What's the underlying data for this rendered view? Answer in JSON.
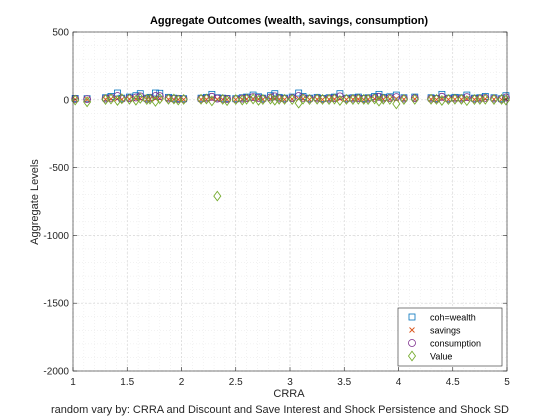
{
  "chart_data": {
    "type": "scatter",
    "title": "Aggregate Outcomes (wealth, savings, consumption)",
    "xlabel": "CRRA",
    "ylabel": "Aggregate Levels",
    "xlim": [
      1,
      5
    ],
    "ylim": [
      -2000,
      500
    ],
    "xticks": [
      1,
      1.5,
      2,
      2.5,
      3,
      3.5,
      4,
      4.5,
      5
    ],
    "xtick_labels": [
      "1",
      "1.5",
      "2",
      "2.5",
      "3",
      "3.5",
      "4",
      "4.5",
      "5"
    ],
    "yticks": [
      500,
      0,
      -500,
      -1000,
      -1500,
      -2000
    ],
    "ytick_labels": [
      "500",
      "0",
      "-500",
      "-1000",
      "-1500",
      "-2000"
    ],
    "grid": true,
    "minor_grid": true,
    "legend_position": "bottom-right",
    "x": [
      1.02,
      1.13,
      1.3,
      1.35,
      1.41,
      1.45,
      1.52,
      1.58,
      1.62,
      1.68,
      1.71,
      1.76,
      1.8,
      1.88,
      1.93,
      1.97,
      2.02,
      2.18,
      2.23,
      2.28,
      2.33,
      2.38,
      2.42,
      2.5,
      2.56,
      2.6,
      2.66,
      2.71,
      2.75,
      2.82,
      2.86,
      2.9,
      2.95,
      3.02,
      3.08,
      3.12,
      3.18,
      3.25,
      3.3,
      3.36,
      3.41,
      3.46,
      3.52,
      3.58,
      3.63,
      3.68,
      3.72,
      3.78,
      3.82,
      3.86,
      3.92,
      3.98,
      4.05,
      4.15,
      4.3,
      4.35,
      4.4,
      4.46,
      4.52,
      4.58,
      4.63,
      4.7,
      4.75,
      4.8,
      4.88,
      4.95,
      4.99
    ],
    "series": [
      {
        "name": "coh=wealth",
        "marker": "square",
        "color": "#0072BD",
        "values": [
          10,
          8,
          15,
          25,
          50,
          12,
          20,
          30,
          45,
          12,
          18,
          50,
          48,
          18,
          12,
          10,
          8,
          12,
          18,
          40,
          15,
          12,
          10,
          8,
          15,
          20,
          35,
          22,
          12,
          30,
          45,
          18,
          12,
          20,
          50,
          25,
          12,
          18,
          10,
          15,
          20,
          45,
          12,
          15,
          20,
          10,
          15,
          25,
          40,
          18,
          22,
          35,
          15,
          20,
          15,
          10,
          40,
          12,
          18,
          15,
          35,
          12,
          15,
          25,
          15,
          8,
          30
        ]
      },
      {
        "name": "savings",
        "marker": "x",
        "color": "#D95319",
        "values": [
          3,
          2,
          4,
          6,
          8,
          3,
          5,
          7,
          9,
          3,
          5,
          9,
          9,
          4,
          3,
          2,
          2,
          3,
          4,
          8,
          4,
          3,
          2,
          2,
          4,
          5,
          7,
          5,
          3,
          6,
          8,
          4,
          3,
          5,
          9,
          6,
          3,
          4,
          2,
          4,
          5,
          8,
          3,
          4,
          5,
          2,
          4,
          6,
          8,
          4,
          5,
          7,
          4,
          5,
          4,
          2,
          8,
          3,
          4,
          4,
          7,
          3,
          4,
          6,
          4,
          2,
          6
        ]
      },
      {
        "name": "consumption",
        "marker": "circle",
        "color": "#7E2F8E",
        "values": [
          6,
          5,
          9,
          14,
          28,
          7,
          12,
          17,
          25,
          7,
          10,
          28,
          27,
          10,
          7,
          6,
          5,
          7,
          10,
          22,
          9,
          7,
          6,
          5,
          9,
          12,
          20,
          13,
          7,
          17,
          25,
          10,
          7,
          12,
          28,
          14,
          7,
          10,
          6,
          9,
          12,
          25,
          7,
          9,
          12,
          6,
          9,
          14,
          22,
          10,
          13,
          20,
          9,
          12,
          9,
          6,
          22,
          7,
          10,
          9,
          20,
          7,
          9,
          14,
          9,
          5,
          17
        ]
      },
      {
        "name": "Value",
        "marker": "diamond",
        "color": "#77AC30",
        "values": [
          -2,
          -15,
          2,
          6,
          -5,
          8,
          4,
          -3,
          10,
          2,
          5,
          -12,
          8,
          4,
          6,
          -2,
          3,
          4,
          6,
          -8,
          -710,
          3,
          -6,
          2,
          -2,
          4,
          6,
          -4,
          2,
          5,
          -3,
          4,
          3,
          2,
          -25,
          5,
          2,
          4,
          3,
          2,
          5,
          -5,
          3,
          2,
          4,
          3,
          2,
          6,
          -10,
          4,
          3,
          -30,
          2,
          3,
          4,
          3,
          -5,
          2,
          4,
          3,
          -6,
          2,
          3,
          4,
          2,
          3,
          -2
        ]
      }
    ]
  },
  "caption": "random vary by: CRRA and Discount and Save Interest and Shock Persistence and Shock SD"
}
